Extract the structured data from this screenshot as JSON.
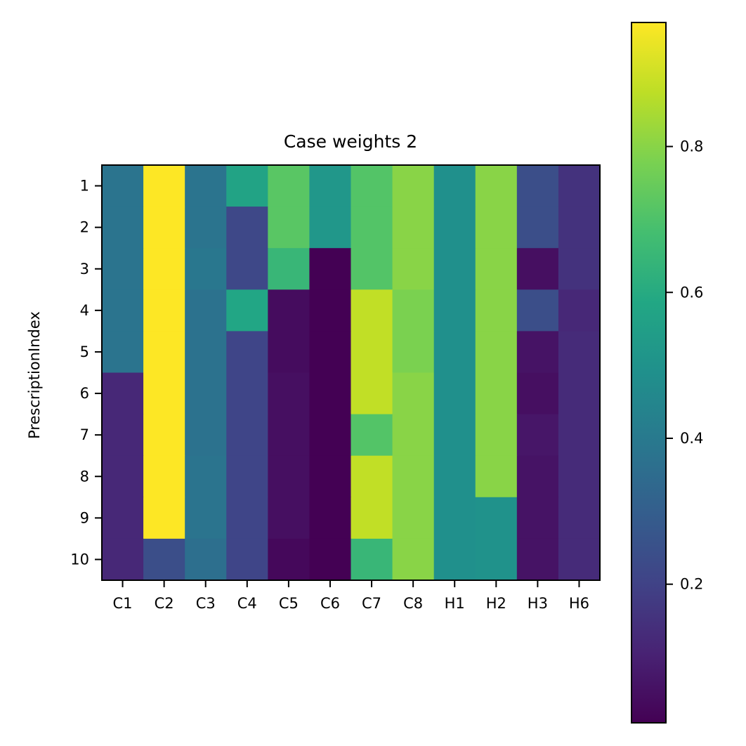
{
  "chart_data": {
    "type": "heatmap",
    "title": "Case weights 2",
    "xlabel": "",
    "ylabel": "PrescriptionIndex",
    "x_categories": [
      "C1",
      "C2",
      "C3",
      "C4",
      "C5",
      "C6",
      "C7",
      "C8",
      "H1",
      "H2",
      "H3",
      "H6"
    ],
    "y_categories": [
      "1",
      "2",
      "3",
      "4",
      "5",
      "6",
      "7",
      "8",
      "9",
      "10"
    ],
    "values": [
      [
        0.38,
        0.97,
        0.38,
        0.57,
        0.72,
        0.52,
        0.71,
        0.8,
        0.49,
        0.8,
        0.24,
        0.15
      ],
      [
        0.38,
        0.97,
        0.38,
        0.22,
        0.72,
        0.52,
        0.71,
        0.8,
        0.49,
        0.8,
        0.24,
        0.15
      ],
      [
        0.38,
        0.97,
        0.39,
        0.22,
        0.65,
        0.01,
        0.71,
        0.8,
        0.49,
        0.8,
        0.05,
        0.15
      ],
      [
        0.38,
        0.97,
        0.37,
        0.58,
        0.04,
        0.01,
        0.88,
        0.78,
        0.49,
        0.8,
        0.24,
        0.12
      ],
      [
        0.38,
        0.97,
        0.37,
        0.21,
        0.04,
        0.01,
        0.88,
        0.78,
        0.49,
        0.8,
        0.06,
        0.13
      ],
      [
        0.12,
        0.97,
        0.37,
        0.21,
        0.05,
        0.01,
        0.88,
        0.8,
        0.49,
        0.8,
        0.05,
        0.13
      ],
      [
        0.12,
        0.97,
        0.37,
        0.21,
        0.05,
        0.01,
        0.71,
        0.8,
        0.49,
        0.8,
        0.07,
        0.13
      ],
      [
        0.12,
        0.97,
        0.38,
        0.21,
        0.05,
        0.01,
        0.88,
        0.8,
        0.49,
        0.8,
        0.06,
        0.13
      ],
      [
        0.12,
        0.97,
        0.38,
        0.21,
        0.05,
        0.01,
        0.88,
        0.8,
        0.49,
        0.5,
        0.06,
        0.13
      ],
      [
        0.12,
        0.24,
        0.36,
        0.21,
        0.03,
        0.01,
        0.65,
        0.8,
        0.49,
        0.5,
        0.06,
        0.13
      ]
    ],
    "colormap": "viridis",
    "colorbar": {
      "min": 0.01,
      "max": 0.97,
      "ticks": [
        0.2,
        0.4,
        0.6,
        0.8
      ],
      "tick_labels": [
        "0.2",
        "0.4",
        "0.6",
        "0.8"
      ]
    }
  }
}
